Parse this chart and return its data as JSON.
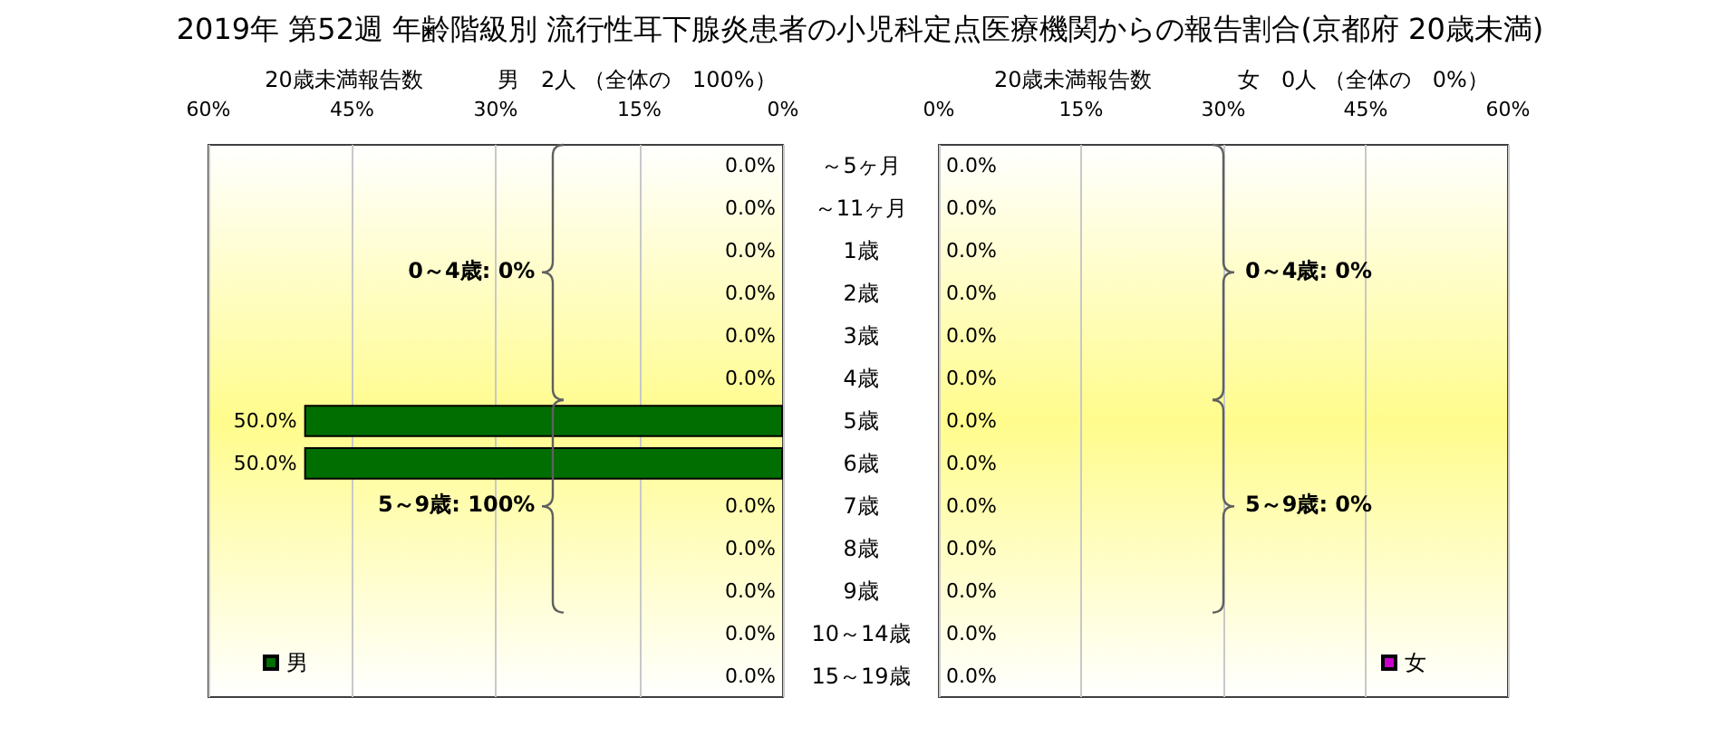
{
  "chart_data": [
    {
      "type": "bar",
      "orientation": "horizontal",
      "title": "2019年 第52週 年齢階級別 流行性耳下腺炎患者の小児科定点医療機関からの報告割合(京都府 20歳未満)",
      "subtitle": "男　2人 （全体の　100%）",
      "xlabel": "20歳未満報告数",
      "categories": [
        "～5ヶ月",
        "～11ヶ月",
        "1歳",
        "2歳",
        "3歳",
        "4歳",
        "5歳",
        "6歳",
        "7歳",
        "8歳",
        "9歳",
        "10～14歳",
        "15～19歳"
      ],
      "series": [
        {
          "name": "男",
          "color": "#006e00",
          "values": [
            0,
            0,
            0,
            0,
            0,
            0,
            50,
            50,
            0,
            0,
            0,
            0,
            0
          ],
          "value_labels": [
            "0.0%",
            "0.0%",
            "0.0%",
            "0.0%",
            "0.0%",
            "0.0%",
            "50.0%",
            "50.0%",
            "0.0%",
            "0.0%",
            "0.0%",
            "0.0%",
            "0.0%"
          ]
        }
      ],
      "xlim": [
        60,
        0
      ],
      "xticks": [
        {
          "value": 60,
          "label": "60%"
        },
        {
          "value": 45,
          "label": "45%"
        },
        {
          "value": 30,
          "label": "30%"
        },
        {
          "value": 15,
          "label": "15%"
        },
        {
          "value": 0,
          "label": "0%"
        }
      ],
      "grid": "x",
      "legend": "bottom left",
      "annotations": [
        "0～4歳: 0%",
        "5～9歳: 100%"
      ]
    },
    {
      "type": "bar",
      "orientation": "horizontal",
      "subtitle": "女　0人 （全体の　0%）",
      "xlabel": "20歳未満報告数",
      "categories": [
        null,
        null,
        null,
        null,
        null,
        null,
        null,
        null,
        null,
        null,
        null,
        null,
        null
      ],
      "series": [
        {
          "name": "女",
          "color": "#cc00cc",
          "values": [
            0,
            0,
            0,
            0,
            0,
            0,
            0,
            0,
            0,
            0,
            0,
            0,
            0
          ],
          "value_labels": [
            "0.0%",
            "0.0%",
            "0.0%",
            "0.0%",
            "0.0%",
            "0.0%",
            "0.0%",
            "0.0%",
            "0.0%",
            "0.0%",
            "0.0%",
            "0.0%",
            "0.0%"
          ]
        }
      ],
      "xlim": [
        0,
        60
      ],
      "xticks": [
        {
          "value": 0,
          "label": "0%"
        },
        {
          "value": 15,
          "label": "15%"
        },
        {
          "value": 30,
          "label": "30%"
        },
        {
          "value": 45,
          "label": "45%"
        },
        {
          "value": 60,
          "label": "60%"
        }
      ],
      "grid": "x",
      "legend": "bottom right",
      "tick_labels": "x",
      "annotations": [
        "0～4歳: 0%",
        "5～9歳: 0%"
      ]
    }
  ]
}
